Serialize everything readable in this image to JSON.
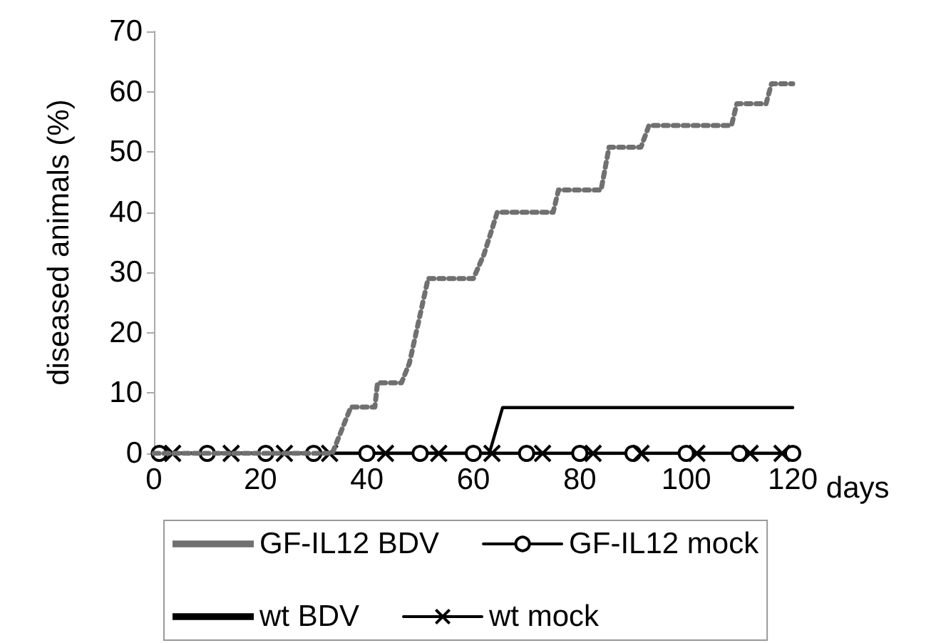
{
  "chart_data": {
    "type": "line",
    "xlabel": "days",
    "ylabel": "diseased animals (%)",
    "xlim": [
      0,
      120
    ],
    "xticks": [
      0,
      20,
      40,
      60,
      80,
      100,
      120
    ],
    "ylim": [
      0,
      70
    ],
    "yticks": [
      0,
      10,
      20,
      30,
      40,
      50,
      60,
      70
    ],
    "grid": false,
    "legend": "bottom",
    "series": [
      {
        "name": "GF-IL12 BDV",
        "color": "#707070",
        "line_style": "dotted",
        "marker": "none",
        "x": [
          0,
          33.5,
          37,
          41.5,
          42,
          46.5,
          48,
          51.5,
          60,
          62,
          64.5,
          75,
          76,
          84,
          85.5,
          91.5,
          93,
          108.5,
          109.5,
          115,
          116,
          120
        ],
        "values": [
          0,
          0,
          7.7,
          7.7,
          11.7,
          11.7,
          15,
          29,
          29,
          33,
          40,
          40,
          43.7,
          43.7,
          50.8,
          50.8,
          54.4,
          54.4,
          58,
          58,
          61.3,
          61.3
        ]
      },
      {
        "name": "GF-IL12 mock",
        "color": "#000000",
        "line_style": "solid",
        "marker": "circle",
        "x": [
          1,
          10,
          21,
          30,
          40,
          50,
          60,
          70,
          80,
          90,
          100,
          110,
          120
        ],
        "values": [
          0,
          0,
          0,
          0,
          0,
          0,
          0,
          0,
          0,
          0,
          0,
          0,
          0
        ]
      },
      {
        "name": "wt BDV",
        "color": "#000000",
        "line_style": "solid",
        "marker": "none",
        "x": [
          0,
          63,
          65.5,
          120
        ],
        "values": [
          0,
          0,
          7.6,
          7.6
        ]
      },
      {
        "name": "wt mock",
        "color": "#000000",
        "line_style": "solid",
        "marker": "cross",
        "x": [
          3.5,
          14.5,
          24.5,
          33,
          43.5,
          53.5,
          63.5,
          73,
          82.5,
          91.5,
          102,
          112,
          118
        ],
        "values": [
          0,
          0,
          0,
          0,
          0,
          0,
          0,
          0,
          0,
          0,
          0,
          0,
          0
        ]
      }
    ]
  }
}
